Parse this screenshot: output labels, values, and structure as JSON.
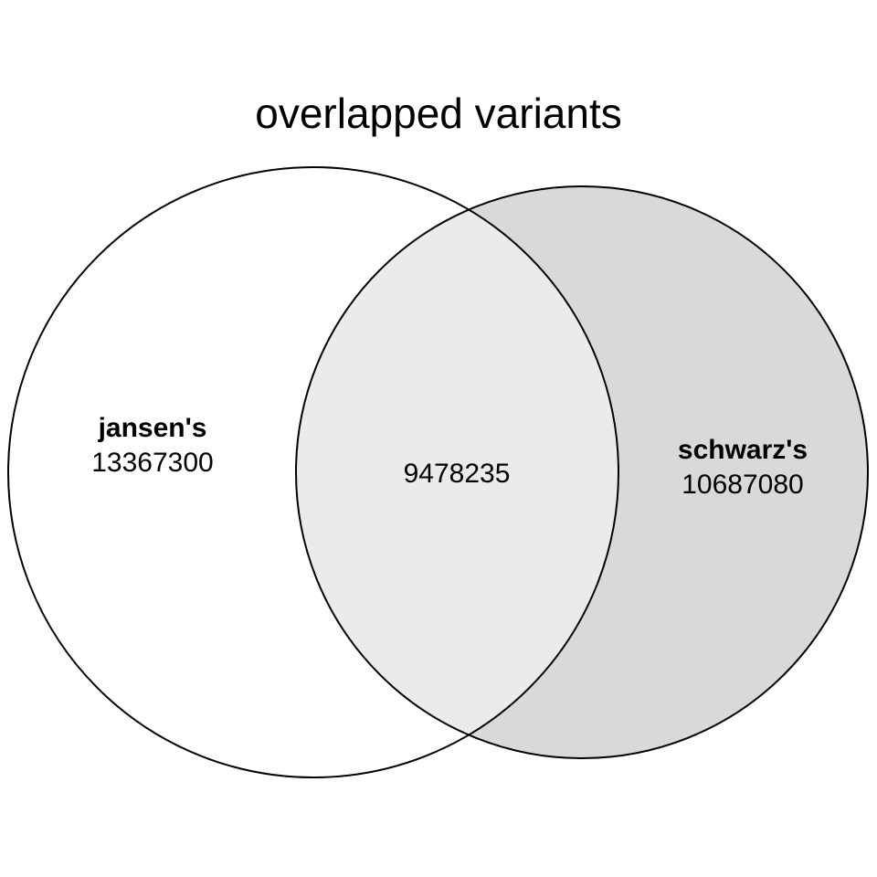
{
  "title": "overlapped variants",
  "sets": [
    {
      "name": "jansen's",
      "only_count": "13367300",
      "fill": "#ffffff"
    },
    {
      "name": "schwarz's",
      "only_count": "10687080",
      "fill": "#d9d9d9"
    }
  ],
  "intersection": {
    "count": "9478235",
    "fill": "#ebebeb"
  }
}
